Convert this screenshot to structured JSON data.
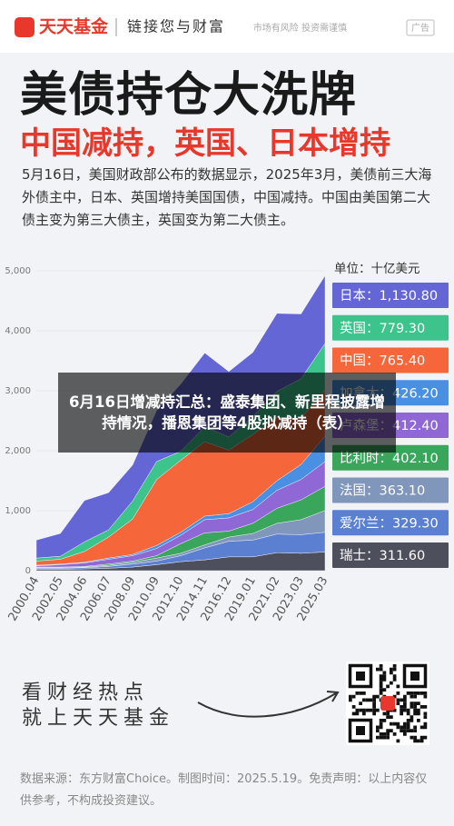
{
  "header": {
    "brand": "天天基金",
    "slogan": "链接您与财富",
    "notice": "市场有风险 投资需谨慎",
    "ad": "广告"
  },
  "title": "美债持仓大洗牌",
  "subtitle": "中国减持，英国、日本增持",
  "intro": "5月16日，美国财政部公布的数据显示，2025年3月，美债前三大海外债主中，日本、英国增持美国国债，中国减持。中国由美国第二大债主变为第三大债主，英国变为第二大债主。",
  "chart_data": {
    "type": "stacked_area",
    "unit": "单位：十亿美元",
    "label_separator": "：",
    "x": [
      "2000.04",
      "2002.05",
      "2004.06",
      "2006.07",
      "2008.09",
      "2010.09",
      "2012.10",
      "2014.11",
      "2016.12",
      "2019.01",
      "2021.02",
      "2023.03",
      "2025.03"
    ],
    "ylim": [
      0,
      5000
    ],
    "yticks": [
      0,
      {
        "value": 1000,
        "label": "1,000"
      },
      {
        "value": 2000,
        "label": "2,000"
      },
      {
        "value": 3000,
        "label": "3,000"
      },
      {
        "value": 4000,
        "label": "4,000"
      },
      {
        "value": 5000,
        "label": "5,000"
      }
    ],
    "series": [
      {
        "name": "日本",
        "color": "#6366d4",
        "values": [
          300,
          380,
          690,
          620,
          600,
          850,
          1120,
          1230,
          1090,
          1070,
          1300,
          1080,
          1130.8
        ],
        "value_labels": [
          null,
          null,
          null,
          null,
          null,
          null,
          null,
          null,
          null,
          null,
          null,
          null,
          "1,130.80"
        ]
      },
      {
        "name": "英国",
        "color": "#3cc48c",
        "values": [
          50,
          50,
          160,
          120,
          300,
          300,
          150,
          250,
          220,
          300,
          430,
          660,
          779.3
        ],
        "value_labels": [
          null,
          null,
          null,
          null,
          null,
          null,
          null,
          null,
          null,
          null,
          null,
          null,
          "779.30"
        ]
      },
      {
        "name": "中国",
        "color": "#f5663a",
        "values": [
          70,
          80,
          180,
          350,
          590,
          1100,
          1200,
          1240,
          1060,
          1120,
          1060,
          770,
          765.4
        ],
        "value_labels": [
          null,
          null,
          null,
          null,
          null,
          null,
          null,
          null,
          null,
          null,
          null,
          null,
          "765.40"
        ]
      },
      {
        "name": "加拿大",
        "color": "#4a90e2",
        "values": [
          10,
          10,
          10,
          20,
          20,
          50,
          50,
          60,
          70,
          130,
          160,
          250,
          426.2
        ],
        "value_labels": [
          null,
          null,
          null,
          null,
          null,
          null,
          null,
          null,
          null,
          null,
          null,
          null,
          "426.20"
        ]
      },
      {
        "name": "卢森堡",
        "color": "#9068d6",
        "values": [
          20,
          40,
          60,
          80,
          90,
          120,
          140,
          220,
          220,
          230,
          300,
          340,
          412.4
        ],
        "value_labels": [
          null,
          null,
          null,
          null,
          null,
          null,
          null,
          null,
          null,
          null,
          null,
          null,
          "412.40"
        ]
      },
      {
        "name": "比利时",
        "color": "#3aa65c",
        "values": [
          10,
          10,
          10,
          20,
          20,
          40,
          160,
          200,
          100,
          170,
          250,
          330,
          402.1
        ],
        "value_labels": [
          null,
          null,
          null,
          null,
          null,
          null,
          null,
          null,
          null,
          null,
          null,
          null,
          "402.10"
        ]
      },
      {
        "name": "法国",
        "color": "#8196bb",
        "values": [
          10,
          10,
          10,
          20,
          30,
          50,
          40,
          50,
          70,
          110,
          180,
          250,
          363.1
        ],
        "value_labels": [
          null,
          null,
          null,
          null,
          null,
          null,
          null,
          null,
          null,
          null,
          null,
          null,
          "363.10"
        ]
      },
      {
        "name": "爱尔兰",
        "color": "#5b7fd1",
        "values": [
          20,
          20,
          20,
          30,
          50,
          60,
          100,
          200,
          260,
          280,
          310,
          310,
          329.3
        ],
        "value_labels": [
          null,
          null,
          null,
          null,
          null,
          null,
          null,
          null,
          null,
          null,
          null,
          null,
          "329.30"
        ]
      },
      {
        "name": "瑞士",
        "color": "#4d4f5c",
        "values": [
          20,
          20,
          30,
          40,
          60,
          100,
          150,
          180,
          230,
          230,
          300,
          290,
          311.6
        ],
        "value_labels": [
          null,
          null,
          null,
          null,
          null,
          null,
          null,
          null,
          null,
          null,
          null,
          null,
          "311.60"
        ]
      }
    ]
  },
  "overlay": "6月16日增减持汇总：盛泰集团、新里程披露增持情况，播恩集团等4股拟减持（表）",
  "promo": {
    "line1": "看财经热点",
    "line2": "就上天天基金"
  },
  "footer": "数据来源：东方财富Choice。制图时间：2025.5.19。免责声明：以上内容仅供参考，不构成投资建议。"
}
